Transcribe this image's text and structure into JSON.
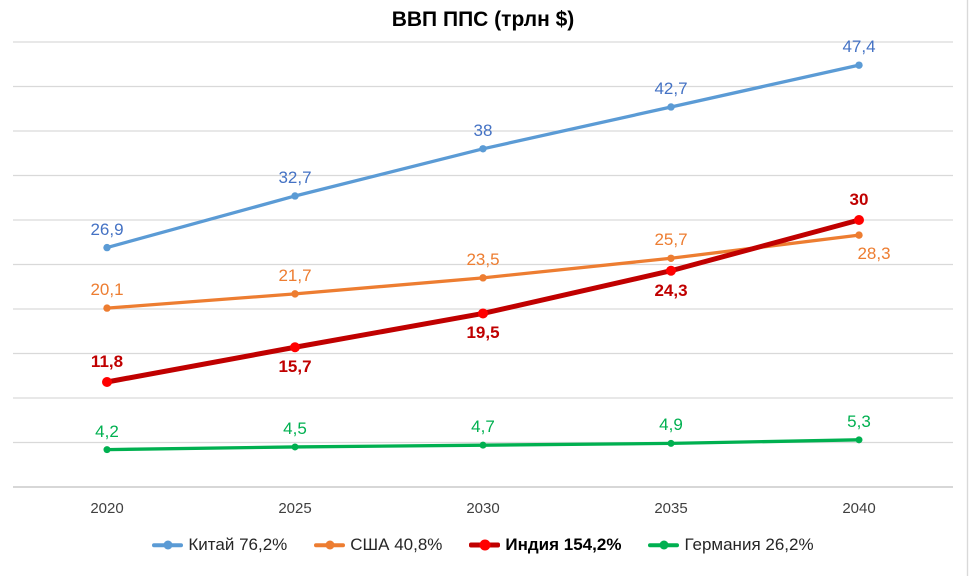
{
  "chart_data": {
    "type": "line",
    "title": "ВВП ППС (трлн $)",
    "categories": [
      "2020",
      "2025",
      "2030",
      "2035",
      "2040"
    ],
    "ylim": [
      0,
      50
    ],
    "grid_step": 5,
    "grid": true,
    "legend_position": "bottom",
    "background_color": "#FFFFFF",
    "gridline_color": "#D9D9D9",
    "axis_line_color": "#BFBFBF",
    "right_border_color": "#D9D9D9",
    "tick_label_color": "#404040",
    "series": [
      {
        "key": "china",
        "name": "Китай",
        "legend_label": "Китай 76,2%",
        "line_color": "#5B9BD5",
        "marker_color": "#5B9BD5",
        "label_color": "#4472C4",
        "bold": false,
        "line_width": 3.3,
        "marker_radius": 3.7,
        "values": [
          26.9,
          32.7,
          38,
          42.7,
          47.4
        ],
        "point_labels": [
          "26,9",
          "32,7",
          "38",
          "42,7",
          "47,4"
        ],
        "label_sides": [
          "above",
          "above",
          "above",
          "above",
          "above"
        ],
        "label_dx": [
          0,
          0,
          0,
          0,
          0
        ]
      },
      {
        "key": "usa",
        "name": "США",
        "legend_label": "США 40,8%",
        "line_color": "#ED7D31",
        "marker_color": "#ED7D31",
        "label_color": "#ED7D31",
        "bold": false,
        "line_width": 3.3,
        "marker_radius": 3.7,
        "values": [
          20.1,
          21.7,
          23.5,
          25.7,
          28.3
        ],
        "point_labels": [
          "20,1",
          "21,7",
          "23,5",
          "25,7",
          "28,3"
        ],
        "label_sides": [
          "above",
          "above",
          "above",
          "above",
          "below"
        ],
        "label_dx": [
          0,
          0,
          0,
          0,
          15
        ]
      },
      {
        "key": "india",
        "name": "Индия",
        "legend_label": "Индия 154,2%",
        "line_color": "#C00000",
        "marker_color": "#FF0000",
        "label_color": "#C00000",
        "bold": true,
        "line_width": 5,
        "marker_radius": 5,
        "values": [
          11.8,
          15.7,
          19.5,
          24.3,
          30
        ],
        "point_labels": [
          "11,8",
          "15,7",
          "19,5",
          "24,3",
          "30"
        ],
        "label_sides": [
          "above",
          "below",
          "below",
          "below",
          "above"
        ],
        "label_dx": [
          0,
          0,
          0,
          0,
          0
        ]
      },
      {
        "key": "germany",
        "name": "Германия",
        "legend_label": "Германия 26,2%",
        "line_color": "#00B050",
        "marker_color": "#00B050",
        "label_color": "#00B050",
        "bold": false,
        "line_width": 3.3,
        "marker_radius": 3.5,
        "values": [
          4.2,
          4.5,
          4.7,
          4.9,
          5.3
        ],
        "point_labels": [
          "4,2",
          "4,5",
          "4,7",
          "4,9",
          "5,3"
        ],
        "label_sides": [
          "above",
          "above",
          "above",
          "above",
          "above"
        ],
        "label_dx": [
          0,
          0,
          0,
          0,
          0
        ]
      }
    ]
  }
}
